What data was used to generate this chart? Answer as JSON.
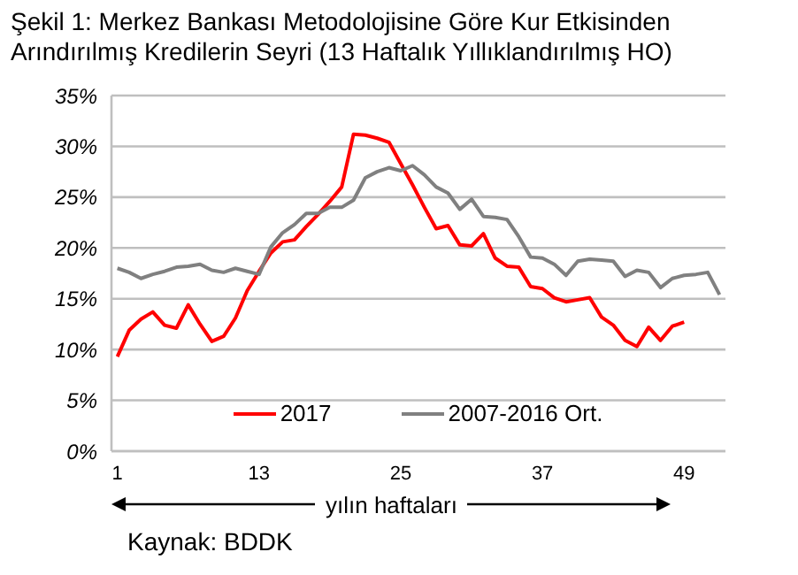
{
  "chart_data": {
    "type": "line",
    "title": "Şekil 1: Merkez Bankası Metodolojisine Göre Kur Etkisinden Arındırılmış Kredilerin Seyri (13 Haftalık Yıllıklandırılmış HO)",
    "xlabel": "yılın haftaları",
    "annotations": [
      "Kaynak: BDDK"
    ],
    "x": [
      1,
      2,
      3,
      4,
      5,
      6,
      7,
      8,
      9,
      10,
      11,
      12,
      13,
      14,
      15,
      16,
      17,
      18,
      19,
      20,
      21,
      22,
      23,
      24,
      25,
      26,
      27,
      28,
      29,
      30,
      31,
      32,
      33,
      34,
      35,
      36,
      37,
      38,
      39,
      40,
      41,
      42,
      43,
      44,
      45,
      46,
      47,
      48,
      49,
      50,
      51,
      52
    ],
    "series": [
      {
        "name": "2017",
        "color": "#ff0000",
        "values": [
          9.3,
          11.9,
          13.0,
          13.7,
          12.4,
          12.1,
          14.4,
          12.5,
          10.8,
          11.3,
          13.1,
          15.8,
          17.7,
          19.5,
          20.6,
          20.8,
          22.1,
          23.3,
          24.6,
          26.0,
          31.2,
          31.1,
          30.8,
          30.4,
          28.3,
          26.2,
          24.0,
          21.9,
          22.2,
          20.3,
          20.2,
          21.4,
          19.0,
          18.2,
          18.1,
          16.2,
          16.0,
          15.1,
          14.7,
          14.9,
          15.1,
          13.2,
          12.4,
          10.9,
          10.3,
          12.2,
          10.9,
          12.3,
          12.7,
          null,
          null,
          null
        ]
      },
      {
        "name": "2007-2016 Ort.",
        "color": "#808080",
        "values": [
          18.0,
          17.6,
          17.0,
          17.4,
          17.7,
          18.1,
          18.2,
          18.4,
          17.8,
          17.6,
          18.0,
          17.7,
          17.4,
          20.1,
          21.5,
          22.3,
          23.4,
          23.4,
          24.0,
          24.0,
          24.7,
          26.9,
          27.5,
          27.9,
          27.6,
          28.1,
          27.2,
          26.0,
          25.4,
          23.8,
          24.8,
          23.1,
          23.0,
          22.8,
          21.1,
          19.1,
          19.0,
          18.4,
          17.3,
          18.7,
          18.9,
          18.8,
          18.7,
          17.2,
          17.8,
          17.6,
          16.1,
          17.0,
          17.3,
          17.4,
          17.6,
          15.4
        ]
      }
    ],
    "xlim": [
      0.5,
      52.5
    ],
    "xticks": [
      1,
      13,
      25,
      37,
      49
    ],
    "ylim": [
      0,
      35
    ],
    "yticks": [
      {
        "value": 0,
        "label": "0%"
      },
      {
        "value": 5,
        "label": "5%"
      },
      {
        "value": 10,
        "label": "10%"
      },
      {
        "value": 15,
        "label": "15%"
      },
      {
        "value": 20,
        "label": "20%"
      },
      {
        "value": 25,
        "label": "25%"
      },
      {
        "value": 30,
        "label": "30%"
      },
      {
        "value": 35,
        "label": "35%"
      }
    ],
    "grid": "y",
    "legend": "bottom",
    "marker": "none",
    "line_style": "solid"
  }
}
